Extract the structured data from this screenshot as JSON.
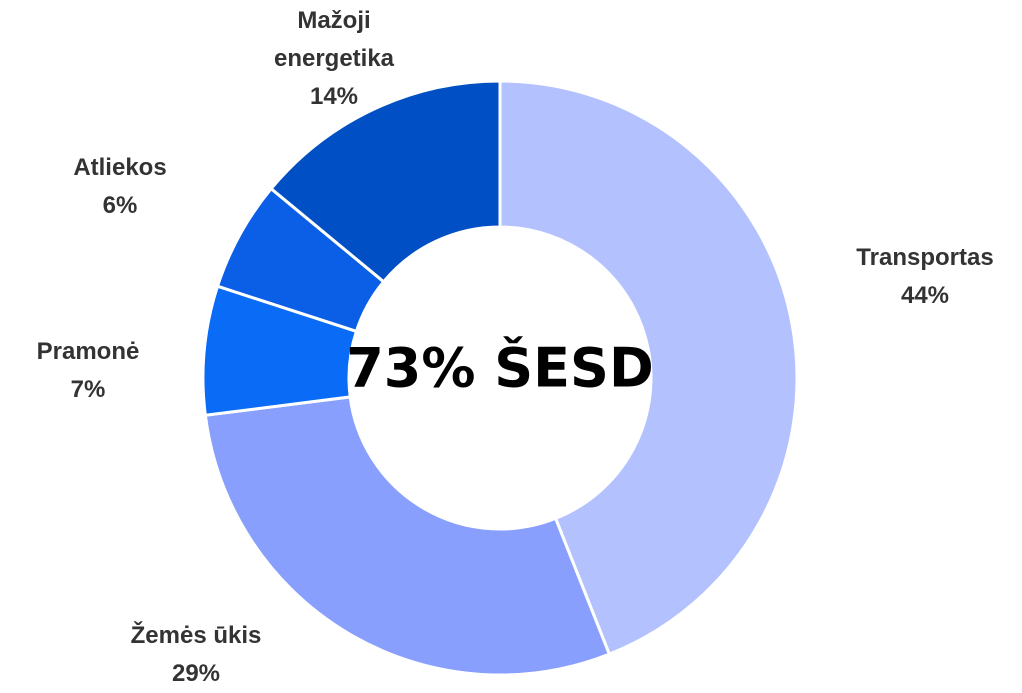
{
  "chart_data": {
    "type": "donut",
    "categories": [
      "Transportas",
      "Žemės ūkis",
      "Pramonė",
      "Atliekos",
      "Mažoji energetika"
    ],
    "values": [
      44,
      29,
      7,
      6,
      14
    ],
    "value_labels": [
      "44%",
      "29%",
      "7%",
      "6%",
      "14%"
    ],
    "colors": [
      "#b4c1ff",
      "#889ffd",
      "#0a6bf7",
      "#0a5fe6",
      "#004fc4"
    ],
    "center_label": "73% ŠESD"
  }
}
